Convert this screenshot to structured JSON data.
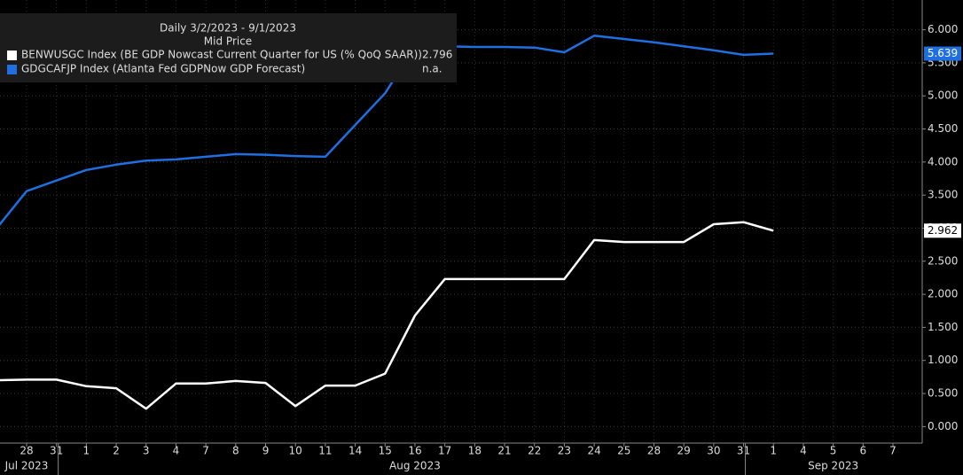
{
  "chart_data": {
    "type": "line",
    "legend_title": [
      "Daily 3/2/2023 - 9/1/2023",
      "Mid Price"
    ],
    "categories": [
      null,
      "28",
      "31",
      "1",
      "2",
      "3",
      "4",
      "7",
      "8",
      "9",
      "10",
      "11",
      "14",
      "15",
      "16",
      "17",
      "18",
      "21",
      "22",
      "23",
      "24",
      "25",
      "28",
      "29",
      "30",
      "31",
      "1",
      "4",
      "5",
      "6",
      "7"
    ],
    "months": [
      "Jul 2023",
      "Aug 2023",
      "Sep 2023"
    ],
    "series": [
      {
        "name": "BENWUSGC Index (BE GDP Nowcast Current Quarter for US (% QoQ SAAR))",
        "legend_value": "2.796",
        "color": "#ffffff",
        "values": [
          0.7,
          0.71,
          0.71,
          0.61,
          0.58,
          0.27,
          0.65,
          0.65,
          0.69,
          0.66,
          0.31,
          0.62,
          0.62,
          0.8,
          1.68,
          2.23,
          2.23,
          2.23,
          2.23,
          2.23,
          2.82,
          2.79,
          2.79,
          2.79,
          3.06,
          3.09,
          2.962,
          null,
          null,
          null,
          null
        ]
      },
      {
        "name": "GDGCAFJP Index (Atlanta Fed GDPNow GDP Forecast)",
        "legend_value": "n.a.",
        "color": "#1f6fe0",
        "values": [
          3.0,
          3.56,
          3.72,
          3.88,
          3.96,
          4.02,
          4.04,
          4.08,
          4.12,
          4.11,
          4.09,
          4.08,
          4.56,
          5.04,
          5.75,
          5.75,
          5.74,
          5.74,
          5.73,
          5.66,
          5.91,
          5.86,
          5.81,
          5.75,
          5.69,
          5.62,
          5.639,
          null,
          null,
          null,
          null
        ]
      }
    ],
    "ylim": [
      -0.25,
      6.45
    ],
    "yticks": [
      {
        "value": 0,
        "label": "0.000"
      },
      {
        "value": 0.5,
        "label": "0.500"
      },
      {
        "value": 1,
        "label": "1.000"
      },
      {
        "value": 1.5,
        "label": "1.500"
      },
      {
        "value": 2,
        "label": "2.000"
      },
      {
        "value": 2.5,
        "label": "2.500"
      },
      {
        "value": 3,
        "label": "3.000"
      },
      {
        "value": 3.5,
        "label": "3.500"
      },
      {
        "value": 4,
        "label": "4.000"
      },
      {
        "value": 4.5,
        "label": "4.500"
      },
      {
        "value": 5,
        "label": "5.000"
      },
      {
        "value": 5.5,
        "label": "5.500"
      },
      {
        "value": 6,
        "label": "6.000"
      }
    ],
    "grid": true,
    "axis_side": "right"
  }
}
